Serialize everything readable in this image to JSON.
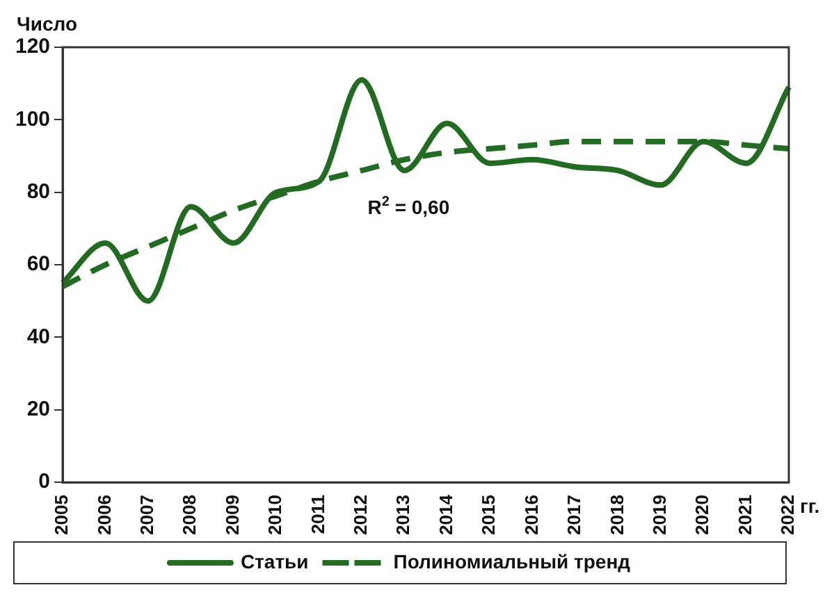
{
  "chart_data": {
    "type": "line",
    "ylabel": "Число",
    "xlabel": "гг.",
    "categories": [
      "2005",
      "2006",
      "2007",
      "2008",
      "2009",
      "2010",
      "2011",
      "2012",
      "2013",
      "2014",
      "2015",
      "2016",
      "2017",
      "2018",
      "2019",
      "2020",
      "2021",
      "2022"
    ],
    "series": [
      {
        "name": "Статьи",
        "color": "#236b23",
        "values": [
          55,
          66,
          50,
          76,
          66,
          80,
          83,
          111,
          86,
          99,
          88,
          89,
          87,
          86,
          82,
          94,
          88,
          109
        ]
      },
      {
        "name": "Полиномиальный тренд",
        "color": "#236b23",
        "line_style": "dashed",
        "values": [
          54,
          60,
          65,
          70,
          75,
          79,
          83,
          86,
          89,
          91,
          92,
          93,
          94,
          94,
          94,
          94,
          93,
          92
        ]
      }
    ],
    "ylim": [
      0,
      120
    ],
    "yticks": [
      0,
      20,
      40,
      60,
      80,
      100,
      120
    ],
    "grid": false,
    "legend": "bottom",
    "marker": "none",
    "annotations": [
      "R$^{2}$ = 0,60"
    ]
  }
}
